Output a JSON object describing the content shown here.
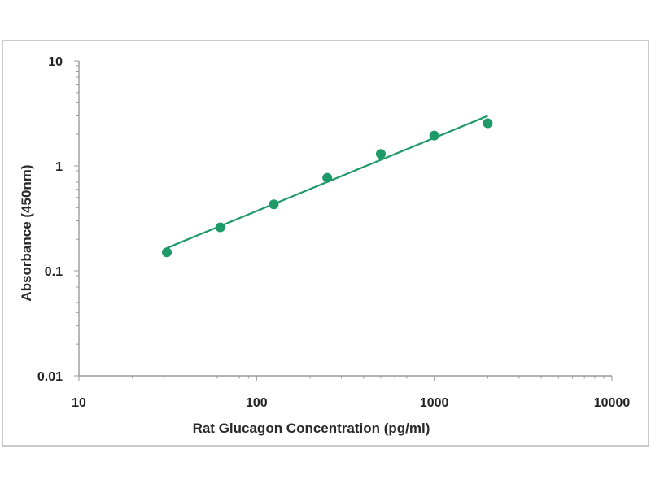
{
  "chart_data": {
    "type": "scatter",
    "title": "",
    "xlabel": "Rat Glucagon Concentration (pg/ml)",
    "ylabel": "Absorbance (450nm)",
    "xscale": "log",
    "yscale": "log",
    "xlim": [
      10,
      10000
    ],
    "ylim": [
      0.01,
      10
    ],
    "x_ticks": [
      "10",
      "100",
      "1000",
      "10000"
    ],
    "y_ticks": [
      "0.01",
      "0.1",
      "1",
      "10"
    ],
    "grid": false,
    "legend": "none",
    "series": [
      {
        "x": [
          31.25,
          62.5,
          125,
          250,
          500,
          1000,
          2000
        ],
        "y": [
          0.15,
          0.26,
          0.43,
          0.77,
          1.3,
          1.95,
          2.55
        ]
      }
    ],
    "fit_line": {
      "x": [
        31.25,
        2000
      ],
      "y": [
        0.165,
        3.0
      ]
    },
    "colors": {
      "marker": "#1e9a68",
      "line": "#1e9a68",
      "axis": "#9a9a9a",
      "frame": "#b9b9b9"
    }
  }
}
